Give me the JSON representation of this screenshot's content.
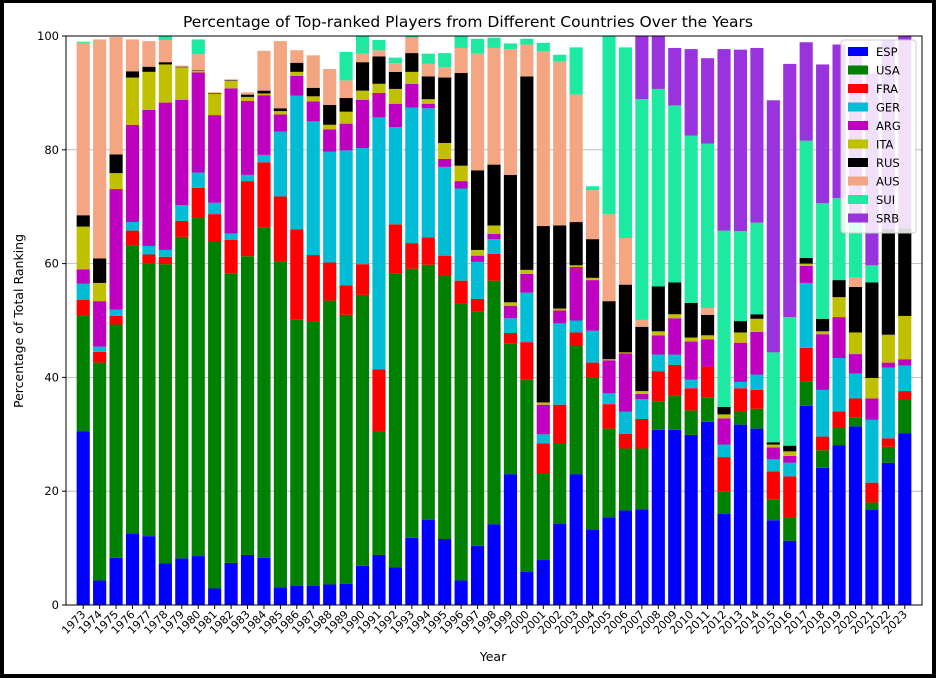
{
  "chart_data": {
    "type": "bar",
    "stacked": true,
    "title": "Percentage of Top-ranked Players from Different Countries Over the Years",
    "xlabel": "Year",
    "ylabel": "Percentage of Total Ranking",
    "ylim": [
      0,
      100
    ],
    "yticks": [
      0,
      20,
      40,
      60,
      80,
      100
    ],
    "grid": "horizontal",
    "legend_position": "top-right",
    "categories": [
      "1973",
      "1974",
      "1975",
      "1976",
      "1977",
      "1978",
      "1979",
      "1980",
      "1981",
      "1982",
      "1983",
      "1984",
      "1985",
      "1986",
      "1987",
      "1988",
      "1989",
      "1990",
      "1991",
      "1992",
      "1993",
      "1994",
      "1995",
      "1996",
      "1997",
      "1998",
      "1999",
      "2000",
      "2001",
      "2002",
      "2003",
      "2004",
      "2005",
      "2006",
      "2007",
      "2008",
      "2009",
      "2010",
      "2011",
      "2012",
      "2013",
      "2014",
      "2015",
      "2016",
      "2017",
      "2018",
      "2019",
      "2020",
      "2021",
      "2022",
      "2023"
    ],
    "series": [
      {
        "name": "ESP",
        "color": "#0000ff",
        "values": [
          30.5,
          4.3,
          8.3,
          12.6,
          12.1,
          7.3,
          8.2,
          8.6,
          2.9,
          7.4,
          8.8,
          8.3,
          3.1,
          3.4,
          3.4,
          3.6,
          3.7,
          6.9,
          8.8,
          6.6,
          11.8,
          15,
          11.6,
          4.3,
          10.4,
          14.2,
          23,
          5.8,
          7.9,
          14.3,
          23,
          13.3,
          15.4,
          16.6,
          16.8,
          30.8,
          30.8,
          29.9,
          32.2,
          16,
          31.7,
          31,
          14.9,
          11.3,
          35,
          24.1,
          28.1,
          31.4,
          16.7,
          25,
          30.2
        ]
      },
      {
        "name": "USA",
        "color": "#008000",
        "values": [
          20.3,
          38.3,
          41,
          50.6,
          47.9,
          52.6,
          56.5,
          59.4,
          60.9,
          50.8,
          52.5,
          58,
          57.2,
          46.8,
          46.5,
          49.9,
          47.3,
          47.6,
          21.7,
          51.6,
          47.3,
          44.8,
          46.3,
          48.7,
          41.2,
          42.8,
          22.9,
          33.8,
          15.3,
          14,
          22.6,
          26.7,
          15.6,
          10.9,
          10.7,
          5,
          6,
          4.3,
          4.3,
          3.9,
          2.3,
          3.5,
          3.6,
          4,
          4.3,
          3.1,
          3,
          1.6,
          1.3,
          2.8,
          6
        ]
      },
      {
        "name": "FRA",
        "color": "#ff0000",
        "values": [
          2.8,
          1.9,
          1.5,
          2.6,
          1.6,
          1.3,
          2.8,
          5.3,
          4.9,
          6,
          13.2,
          11.5,
          11.5,
          15.8,
          11.6,
          6.7,
          5.2,
          5.4,
          10.9,
          8.7,
          4.5,
          4.8,
          3.5,
          4,
          2.2,
          4.7,
          1.9,
          6.6,
          5.2,
          6.9,
          2.3,
          2.6,
          4.3,
          2.6,
          5.2,
          5.3,
          5.4,
          3.9,
          5.4,
          6.1,
          4.1,
          3.3,
          5,
          7.3,
          5.9,
          2.4,
          2.9,
          3.3,
          3.5,
          1.5,
          1.4
        ]
      },
      {
        "name": "GER",
        "color": "#00bcd4",
        "values": [
          2.9,
          0.9,
          1.1,
          1.5,
          1.5,
          1.2,
          2.8,
          2.7,
          2,
          1.1,
          1.1,
          1.3,
          11.4,
          23.5,
          23.5,
          19.5,
          23.7,
          20.4,
          44.3,
          17.1,
          23.8,
          22.7,
          15.6,
          16.2,
          6.5,
          2.6,
          2.6,
          8.7,
          1.6,
          14.3,
          2.1,
          5.6,
          1.9,
          3.9,
          3.5,
          2.9,
          1.8,
          1.5,
          0,
          2.2,
          1.1,
          2.7,
          2.1,
          2.4,
          11.4,
          8.2,
          9.4,
          4.4,
          11.1,
          12.4,
          4.5
        ]
      },
      {
        "name": "ARG",
        "color": "#c000c0",
        "values": [
          2.5,
          8,
          21.2,
          17.1,
          23.9,
          25.9,
          18.5,
          17.6,
          15.4,
          25.5,
          13,
          10.5,
          3,
          3.5,
          3.5,
          3.9,
          4.7,
          8.5,
          4.3,
          4.1,
          4.2,
          0.8,
          1.4,
          1.3,
          1.1,
          0.9,
          2.2,
          3.3,
          5.2,
          2.3,
          9.4,
          8.9,
          5.8,
          10.2,
          0.9,
          3.4,
          6.4,
          6.7,
          4.8,
          4.6,
          6.9,
          7.5,
          2.1,
          1.2,
          3,
          9.8,
          7.2,
          3.4,
          3.7,
          0.9,
          1.1
        ]
      },
      {
        "name": "ITA",
        "color": "#c0c000",
        "values": [
          7.5,
          3.2,
          2.8,
          8.3,
          6.7,
          6.7,
          5.7,
          0.3,
          3.7,
          1.3,
          0.7,
          0.3,
          0.6,
          0.7,
          0.9,
          0.8,
          2.1,
          1.6,
          1.6,
          2.6,
          2.1,
          0.8,
          2.8,
          2.7,
          1,
          1.5,
          0.6,
          0.7,
          0.4,
          0.3,
          0.3,
          0.4,
          0.2,
          0.2,
          0.5,
          0.7,
          0.7,
          0.7,
          0.7,
          0.7,
          1.8,
          2.3,
          0.5,
          0.8,
          0.4,
          0.5,
          3.5,
          3.8,
          3.6,
          4.9,
          7.6
        ]
      },
      {
        "name": "RUS",
        "color": "#000000",
        "values": [
          2,
          4.3,
          3.3,
          1.1,
          0.9,
          0.4,
          0.1,
          0.1,
          0.1,
          0.1,
          0.4,
          0.5,
          0.5,
          1.6,
          1.5,
          3.5,
          2.4,
          5,
          4.8,
          3,
          3.3,
          4,
          11.5,
          16.3,
          14,
          10.7,
          22.4,
          34,
          31,
          14.6,
          7.6,
          6.8,
          10.2,
          11.9,
          11.3,
          7.9,
          5.6,
          6.1,
          3.6,
          1.3,
          2,
          0.8,
          0.4,
          1,
          1,
          2.2,
          3,
          8,
          16.8,
          18.6,
          15.4
        ]
      },
      {
        "name": "AUS",
        "color": "#f4a582",
        "values": [
          30.3,
          38.5,
          20.6,
          5.6,
          4.5,
          3.9,
          0.2,
          2.8,
          0.2,
          0.2,
          0.4,
          7,
          11.8,
          2.2,
          5.7,
          6.3,
          3.1,
          1.5,
          1.1,
          1.5,
          2.7,
          2.2,
          1.8,
          4.4,
          20.5,
          20.5,
          22.1,
          5.6,
          30.7,
          28.8,
          22.4,
          8.6,
          15.3,
          8.2,
          1.2,
          0,
          0,
          0,
          1.2,
          0,
          0,
          0,
          0,
          0,
          0,
          0,
          0,
          1.6,
          0,
          0,
          0
        ]
      },
      {
        "name": "SUI",
        "color": "#1de9a0",
        "values": [
          0.2,
          0,
          0,
          0,
          0,
          1.3,
          0,
          2.6,
          0,
          0,
          0,
          0,
          0,
          0,
          0,
          0,
          5,
          6.5,
          1.8,
          1,
          0.8,
          1.8,
          2.5,
          2.3,
          2.6,
          1.8,
          1,
          1,
          1.5,
          1.2,
          8.3,
          0.7,
          31.3,
          33.5,
          38.8,
          34.7,
          31.1,
          29.4,
          28.9,
          31,
          15.8,
          16.1,
          15.8,
          22.6,
          20.6,
          20.3,
          14.4,
          11.1,
          3,
          0,
          0
        ]
      },
      {
        "name": "SRB",
        "color": "#9933dd",
        "values": [
          0,
          0,
          0,
          0,
          0,
          0,
          0,
          0,
          0,
          0,
          0,
          0,
          0,
          0,
          0,
          0,
          0,
          0,
          0,
          0,
          0,
          0,
          0,
          0,
          0,
          0,
          0,
          0,
          0,
          0,
          0,
          0,
          0,
          0,
          11.2,
          10.5,
          10.1,
          15.2,
          15,
          31.9,
          31.9,
          30.7,
          44.3,
          44.5,
          17.3,
          24.4,
          27,
          28,
          33.7,
          33.1,
          33.8
        ]
      }
    ]
  }
}
